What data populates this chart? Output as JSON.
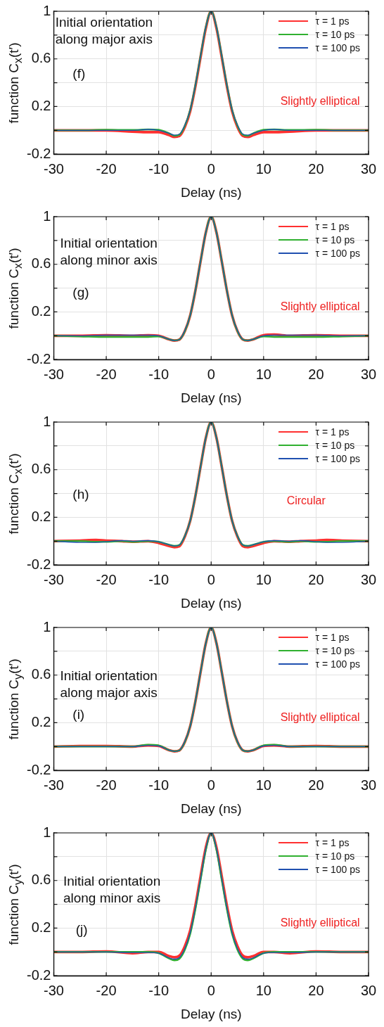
{
  "chart_data": [
    {
      "type": "line",
      "xlabel": "Delay (ns)",
      "ylabel": "function C$_{x}$(t′)",
      "annotations": [
        "Initial orientation\nalong major axis",
        "(f)",
        "Slightly elliptical"
      ],
      "x": [
        -30,
        -25,
        -20,
        -15,
        -12,
        -10,
        -8,
        -7,
        -6,
        -5,
        -4,
        -3,
        -2,
        -1,
        0,
        1,
        2,
        3,
        4,
        5,
        6,
        7,
        8,
        10,
        12,
        15,
        20,
        25,
        30
      ],
      "series": [
        {
          "name": "τ = 1 ps",
          "color": "#ff3030",
          "values": [
            0,
            0,
            0,
            -0.01,
            -0.015,
            -0.015,
            -0.04,
            -0.055,
            -0.045,
            0.03,
            0.16,
            0.37,
            0.62,
            0.86,
            1,
            0.86,
            0.62,
            0.37,
            0.16,
            0.03,
            -0.045,
            -0.055,
            -0.04,
            -0.015,
            -0.015,
            -0.01,
            0,
            0,
            0
          ]
        },
        {
          "name": "τ = 10 ps",
          "color": "#30b030",
          "values": [
            0,
            0,
            0.005,
            0.003,
            0.008,
            0.005,
            -0.025,
            -0.045,
            -0.035,
            0.04,
            0.17,
            0.38,
            0.63,
            0.87,
            1,
            0.87,
            0.63,
            0.38,
            0.17,
            0.04,
            -0.035,
            -0.045,
            -0.025,
            0.005,
            0.008,
            0.003,
            0.005,
            0,
            0
          ]
        },
        {
          "name": "τ = 100 ps",
          "color": "#2050b0",
          "values": [
            0,
            0,
            0,
            0,
            0.008,
            0,
            -0.025,
            -0.04,
            -0.03,
            0.045,
            0.17,
            0.38,
            0.63,
            0.87,
            1,
            0.87,
            0.63,
            0.38,
            0.17,
            0.045,
            -0.03,
            -0.04,
            -0.025,
            0,
            0.008,
            0,
            0,
            0,
            0
          ]
        }
      ],
      "xlim": [
        -30,
        30
      ],
      "xticks": [
        -30,
        -20,
        -10,
        0,
        10,
        20,
        30
      ],
      "ylim": [
        -0.2,
        1
      ],
      "yticks": [
        -0.2,
        {
          "value": 0,
          "label": null
        },
        0.2,
        {
          "value": 0.4,
          "label": null
        },
        0.6,
        {
          "value": 0.8,
          "label": null
        },
        1
      ],
      "grid": true,
      "legend": "top right",
      "marker": "none",
      "line_style": "solid"
    },
    {
      "type": "line",
      "xlabel": "Delay (ns)",
      "ylabel": "function C$_{x}$(t′)",
      "annotations": [
        "Initial orientation\nalong minor axis",
        "(g)",
        "Slightly elliptical"
      ],
      "x": [
        -30,
        -25,
        -20,
        -15,
        -12,
        -10,
        -8,
        -7,
        -6,
        -5,
        -4,
        -3,
        -2,
        -1,
        0,
        1,
        2,
        3,
        4,
        5,
        6,
        7,
        8,
        10,
        12,
        15,
        20,
        25,
        30
      ],
      "series": [
        {
          "name": "τ = 1 ps",
          "color": "#ff3030",
          "values": [
            0,
            0,
            0.005,
            0,
            0.005,
            0,
            -0.03,
            -0.04,
            -0.03,
            0.04,
            0.17,
            0.38,
            0.63,
            0.87,
            1,
            0.87,
            0.63,
            0.38,
            0.17,
            0.04,
            -0.03,
            -0.04,
            -0.03,
            0.005,
            0.01,
            0,
            0.005,
            0,
            0
          ]
        },
        {
          "name": "τ = 10 ps",
          "color": "#30b030",
          "values": [
            0,
            -0.005,
            -0.01,
            -0.01,
            -0.01,
            -0.005,
            -0.03,
            -0.04,
            -0.03,
            0.04,
            0.17,
            0.38,
            0.63,
            0.87,
            1,
            0.87,
            0.63,
            0.38,
            0.17,
            0.04,
            -0.03,
            -0.04,
            -0.03,
            -0.005,
            -0.01,
            -0.01,
            -0.01,
            -0.005,
            0
          ]
        },
        {
          "name": "τ = 100 ps",
          "color": "#2050b0",
          "values": [
            0,
            0,
            0.005,
            0.005,
            0.005,
            0,
            -0.03,
            -0.04,
            -0.03,
            0.045,
            0.17,
            0.38,
            0.63,
            0.87,
            1,
            0.87,
            0.63,
            0.38,
            0.17,
            0.045,
            -0.03,
            -0.04,
            -0.03,
            0,
            0.005,
            0.005,
            0.005,
            0,
            0
          ]
        }
      ],
      "xlim": [
        -30,
        30
      ],
      "xticks": [
        -30,
        -20,
        -10,
        0,
        10,
        20,
        30
      ],
      "ylim": [
        -0.2,
        1
      ],
      "yticks": [
        -0.2,
        {
          "value": 0,
          "label": null
        },
        0.2,
        {
          "value": 0.4,
          "label": null
        },
        0.6,
        {
          "value": 0.8,
          "label": null
        },
        1
      ],
      "grid": true,
      "legend": "top right",
      "marker": "none",
      "line_style": "solid"
    },
    {
      "type": "line",
      "xlabel": "Delay (ns)",
      "ylabel": "function C$_{x}$(t′)",
      "annotations": [
        "(h)",
        "Circular"
      ],
      "x": [
        -30,
        -25,
        -22,
        -20,
        -17,
        -15,
        -12,
        -10,
        -8,
        -7,
        -6,
        -5,
        -4,
        -3,
        -2,
        -1,
        0,
        1,
        2,
        3,
        4,
        5,
        6,
        7,
        8,
        10,
        12,
        15,
        17,
        20,
        22,
        25,
        30
      ],
      "series": [
        {
          "name": "τ = 1 ps",
          "color": "#ff3030",
          "values": [
            0,
            0.005,
            0.01,
            0.005,
            0,
            -0.005,
            0,
            -0.015,
            -0.04,
            -0.05,
            -0.04,
            0.04,
            0.17,
            0.38,
            0.63,
            0.87,
            1,
            0.87,
            0.63,
            0.38,
            0.17,
            0.04,
            -0.04,
            -0.05,
            -0.04,
            -0.015,
            0,
            -0.005,
            0,
            0.005,
            0.01,
            0.005,
            0
          ]
        },
        {
          "name": "τ = 10 ps",
          "color": "#30b030",
          "values": [
            0,
            0,
            -0.005,
            -0.005,
            0,
            -0.005,
            0,
            -0.005,
            -0.03,
            -0.04,
            -0.03,
            0.045,
            0.17,
            0.38,
            0.63,
            0.87,
            1,
            0.87,
            0.63,
            0.38,
            0.17,
            0.045,
            -0.03,
            -0.04,
            -0.03,
            -0.005,
            0,
            -0.005,
            0,
            -0.005,
            -0.005,
            0,
            0
          ]
        },
        {
          "name": "τ = 100 ps",
          "color": "#2050b0",
          "values": [
            0,
            -0.01,
            -0.01,
            -0.005,
            0.005,
            0,
            0.005,
            -0.005,
            -0.03,
            -0.04,
            -0.03,
            0.045,
            0.17,
            0.38,
            0.63,
            0.87,
            1,
            0.87,
            0.63,
            0.38,
            0.17,
            0.045,
            -0.03,
            -0.04,
            -0.03,
            -0.005,
            0.005,
            0,
            0.005,
            -0.005,
            -0.01,
            -0.01,
            0
          ]
        }
      ],
      "xlim": [
        -30,
        30
      ],
      "xticks": [
        -30,
        -20,
        -10,
        0,
        10,
        20,
        30
      ],
      "ylim": [
        -0.2,
        1
      ],
      "yticks": [
        -0.2,
        {
          "value": 0,
          "label": null
        },
        0.2,
        {
          "value": 0.4,
          "label": null
        },
        0.6,
        {
          "value": 0.8,
          "label": null
        },
        1
      ],
      "grid": true,
      "legend": "top right",
      "marker": "none",
      "line_style": "solid"
    },
    {
      "type": "line",
      "xlabel": "Delay (ns)",
      "ylabel": "function C$_{y}$(t′)",
      "annotations": [
        "Initial orientation\nalong major axis",
        "(i)",
        "Slightly elliptical"
      ],
      "x": [
        -30,
        -25,
        -20,
        -15,
        -12,
        -10,
        -8,
        -7,
        -6,
        -5,
        -4,
        -3,
        -2,
        -1,
        0,
        1,
        2,
        3,
        4,
        5,
        6,
        7,
        8,
        10,
        12,
        15,
        20,
        25,
        30
      ],
      "series": [
        {
          "name": "τ = 1 ps",
          "color": "#ff3030",
          "values": [
            0,
            0.005,
            0.005,
            0,
            0.01,
            0.005,
            -0.03,
            -0.04,
            -0.03,
            0.04,
            0.17,
            0.38,
            0.63,
            0.87,
            1,
            0.87,
            0.63,
            0.38,
            0.17,
            0.04,
            -0.03,
            -0.04,
            -0.03,
            0.005,
            0.01,
            0,
            0.005,
            0,
            0
          ]
        },
        {
          "name": "τ = 10 ps",
          "color": "#30b030",
          "values": [
            0,
            0,
            0,
            0,
            0.015,
            0.01,
            -0.03,
            -0.04,
            -0.03,
            0.04,
            0.17,
            0.38,
            0.63,
            0.87,
            1,
            0.87,
            0.63,
            0.38,
            0.17,
            0.04,
            -0.03,
            -0.04,
            -0.03,
            0.01,
            0.015,
            0,
            0,
            0,
            0
          ]
        },
        {
          "name": "τ = 100 ps",
          "color": "#2050b0",
          "values": [
            0,
            0,
            0,
            0,
            0.01,
            0.005,
            -0.03,
            -0.04,
            -0.03,
            0.045,
            0.17,
            0.38,
            0.63,
            0.87,
            1,
            0.87,
            0.63,
            0.38,
            0.17,
            0.045,
            -0.03,
            -0.04,
            -0.03,
            0.005,
            0.01,
            0,
            0,
            0,
            0
          ]
        }
      ],
      "xlim": [
        -30,
        30
      ],
      "xticks": [
        -30,
        -20,
        -10,
        0,
        10,
        20,
        30
      ],
      "ylim": [
        -0.2,
        1
      ],
      "yticks": [
        -0.2,
        {
          "value": 0,
          "label": null
        },
        0.2,
        {
          "value": 0.4,
          "label": null
        },
        0.6,
        {
          "value": 0.8,
          "label": null
        },
        1
      ],
      "grid": true,
      "legend": "top right",
      "marker": "none",
      "line_style": "solid"
    },
    {
      "type": "line",
      "xlabel": "Delay (ns)",
      "ylabel": "function C$_{y}$(t′)",
      "annotations": [
        "Initial orientation\nalong minor axis",
        "(j)",
        "Slightly elliptical"
      ],
      "x": [
        -30,
        -25,
        -20,
        -15,
        -12,
        -10,
        -8,
        -7,
        -6,
        -5,
        -4,
        -3,
        -2,
        -1,
        0,
        1,
        2,
        3,
        4,
        5,
        6,
        7,
        8,
        10,
        12,
        15,
        20,
        25,
        30
      ],
      "series": [
        {
          "name": "τ = 1 ps",
          "color": "#ff3030",
          "values": [
            0,
            0,
            0.005,
            -0.01,
            0,
            0,
            -0.035,
            -0.045,
            -0.03,
            0.05,
            0.18,
            0.39,
            0.64,
            0.88,
            1,
            0.88,
            0.64,
            0.39,
            0.18,
            0.05,
            -0.03,
            -0.045,
            -0.035,
            0,
            0,
            -0.01,
            0.005,
            0,
            0
          ]
        },
        {
          "name": "τ = 10 ps",
          "color": "#30b030",
          "values": [
            0,
            0,
            0,
            0,
            0,
            -0.01,
            -0.055,
            -0.07,
            -0.055,
            0.02,
            0.15,
            0.36,
            0.61,
            0.86,
            1,
            0.86,
            0.61,
            0.36,
            0.15,
            0.02,
            -0.055,
            -0.07,
            -0.055,
            -0.01,
            0,
            0,
            0,
            0,
            0
          ]
        },
        {
          "name": "τ = 100 ps",
          "color": "#2050b0",
          "values": [
            0,
            0,
            0,
            -0.005,
            -0.005,
            -0.01,
            -0.05,
            -0.06,
            -0.045,
            0.03,
            0.16,
            0.37,
            0.62,
            0.87,
            1,
            0.87,
            0.62,
            0.37,
            0.16,
            0.03,
            -0.045,
            -0.06,
            -0.05,
            -0.01,
            -0.005,
            -0.005,
            0,
            0,
            0
          ]
        }
      ],
      "xlim": [
        -30,
        30
      ],
      "xticks": [
        -30,
        -20,
        -10,
        0,
        10,
        20,
        30
      ],
      "ylim": [
        -0.2,
        1
      ],
      "yticks": [
        -0.2,
        {
          "value": 0,
          "label": null
        },
        0.2,
        {
          "value": 0.4,
          "label": null
        },
        0.6,
        {
          "value": 0.8,
          "label": null
        },
        1
      ],
      "grid": true,
      "legend": "top right",
      "marker": "none",
      "line_style": "solid"
    }
  ]
}
